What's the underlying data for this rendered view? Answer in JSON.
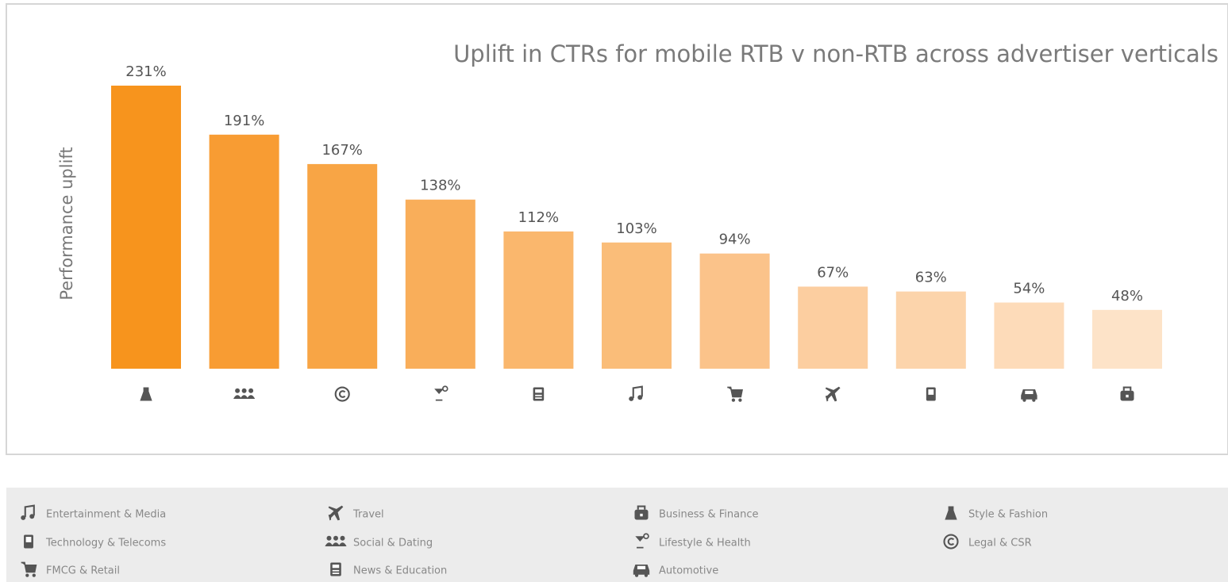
{
  "chart_data": {
    "type": "bar",
    "title": "Uplift in CTRs for mobile RTB v non-RTB across advertiser verticals",
    "y_label": "Performance uplift",
    "values": [
      231,
      191,
      167,
      138,
      112,
      103,
      94,
      67,
      63,
      54,
      48
    ],
    "value_labels": [
      "231%",
      "191%",
      "167%",
      "138%",
      "112%",
      "103%",
      "94%",
      "67%",
      "63%",
      "54%",
      "48%"
    ],
    "colors": [
      "#f7941d",
      "#f89c33",
      "#f8a545",
      "#f9ae5a",
      "#fab76d",
      "#fabd79",
      "#fbc38a",
      "#fccea0",
      "#fcd4ab",
      "#fddbb9",
      "#fde3c8"
    ],
    "legend": [
      "Entertainment & Media",
      "Technology & Telecoms",
      "FMCG & Retail",
      "Travel",
      "Social & Dating",
      "News & Education",
      "Business & Finance",
      "Lifestyle & Health",
      "Automotive",
      "Style & Fashion",
      "Legal & CSR"
    ]
  }
}
